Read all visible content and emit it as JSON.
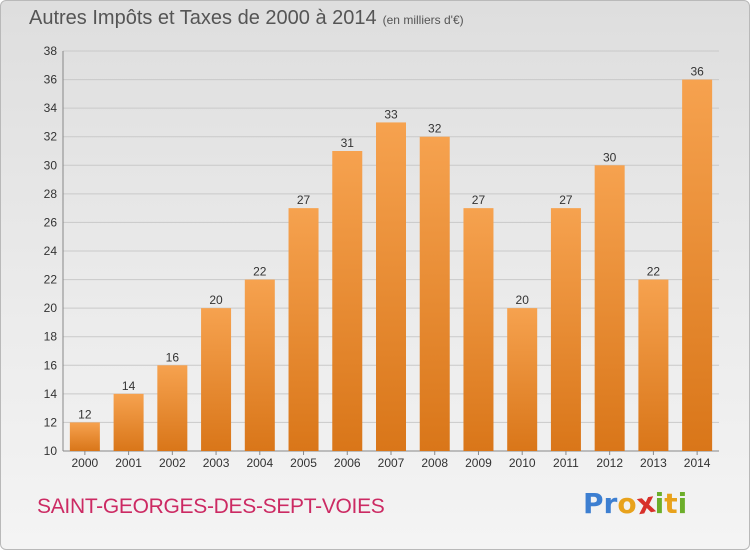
{
  "header": {
    "title": "Autres Impôts et Taxes de 2000 à 2014",
    "unit": "(en milliers d'€)"
  },
  "footer": {
    "commune": "SAINT-GEORGES-DES-SEPT-VOIES",
    "brand_letters": [
      {
        "ch": "P",
        "color": "#3d7fd1"
      },
      {
        "ch": "r",
        "color": "#3d7fd1"
      },
      {
        "ch": "o",
        "color": "#e8a21c"
      },
      {
        "ch": "x",
        "color": "#d8302a"
      },
      {
        "ch": "i",
        "color": "#6cae2a"
      },
      {
        "ch": "t",
        "color": "#e8a21c"
      },
      {
        "ch": "i",
        "color": "#6cae2a"
      }
    ]
  },
  "colors": {
    "bar_top": "#f6a24f",
    "bar_bottom": "#d97619",
    "grid": "#c9c9c9"
  },
  "chart_data": {
    "type": "bar",
    "title": "Autres Impôts et Taxes de 2000 à 2014",
    "categories": [
      "2000",
      "2001",
      "2002",
      "2003",
      "2004",
      "2005",
      "2006",
      "2007",
      "2008",
      "2009",
      "2010",
      "2011",
      "2012",
      "2013",
      "2014"
    ],
    "values": [
      12,
      14,
      16,
      20,
      22,
      27,
      31,
      33,
      32,
      27,
      20,
      27,
      30,
      22,
      36
    ],
    "ylim": [
      10,
      38
    ],
    "yticks": [
      10,
      12,
      14,
      16,
      18,
      20,
      22,
      24,
      26,
      28,
      30,
      32,
      34,
      36,
      38
    ],
    "grid": true,
    "data_labels": true
  }
}
